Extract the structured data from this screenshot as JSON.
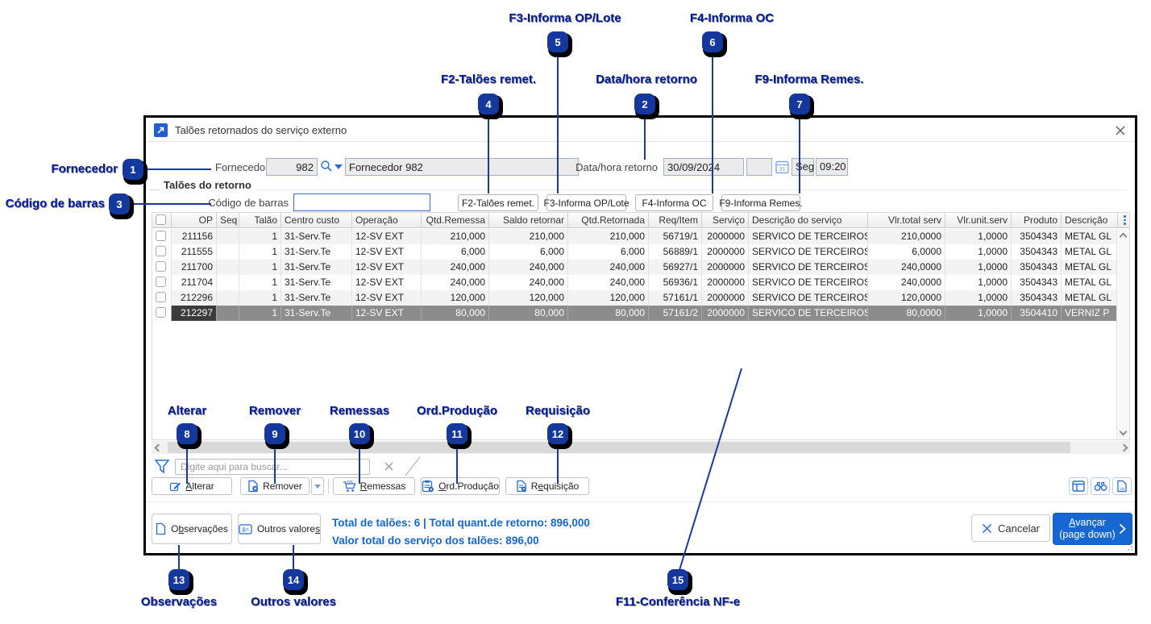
{
  "window": {
    "title": "Talões retornados do serviço externo"
  },
  "form": {
    "fornecedor_label": "Fornecedor",
    "fornecedor_code": "982",
    "fornecedor_name": "Fornecedor 982",
    "datahora_label": "Data/hora retorno",
    "date": "30/09/2024",
    "weekday": "Seg",
    "time": "09:20",
    "calendar_glyph": "31"
  },
  "group": {
    "title": "Talões do retorno",
    "barcode_label": "Código de barras",
    "barcode_value": "",
    "f2": "F2-Talões remet.",
    "f3": "F3-Informa OP/Lote",
    "f4": "F4-Informa OC",
    "f9": "F9-Informa Remes."
  },
  "table": {
    "columns": [
      "",
      "OP",
      "Seq",
      "Talão",
      "Centro custo",
      "Operação",
      "Qtd.Remessa",
      "Saldo retornar",
      "Qtd.Retornada",
      "Req/Item",
      "Serviço",
      "Descrição do serviço",
      "Vlr.total serv",
      "Vlr.unit.serv",
      "Produto",
      "Descrição"
    ],
    "selected_index": 5,
    "rows": [
      [
        "211156",
        "",
        "1",
        "31-Serv.Te",
        "12-SV EXT",
        "210,000",
        "210,000",
        "210,000",
        "56719/1",
        "2000000",
        "SERVICO DE TERCEIROS",
        "210,0000",
        "1,0000",
        "3504343",
        "METAL GL"
      ],
      [
        "211555",
        "",
        "1",
        "31-Serv.Te",
        "12-SV EXT",
        "6,000",
        "6,000",
        "6,000",
        "56889/1",
        "2000000",
        "SERVICO DE TERCEIROS",
        "6,0000",
        "1,0000",
        "3504343",
        "METAL GL"
      ],
      [
        "211700",
        "",
        "1",
        "31-Serv.Te",
        "12-SV EXT",
        "240,000",
        "240,000",
        "240,000",
        "56927/1",
        "2000000",
        "SERVICO DE TERCEIROS",
        "240,0000",
        "1,0000",
        "3504343",
        "METAL GL"
      ],
      [
        "211704",
        "",
        "1",
        "31-Serv.Te",
        "12-SV EXT",
        "240,000",
        "240,000",
        "240,000",
        "56936/1",
        "2000000",
        "SERVICO DE TERCEIROS",
        "240,0000",
        "1,0000",
        "3504343",
        "METAL GL"
      ],
      [
        "212296",
        "",
        "1",
        "31-Serv.Te",
        "12-SV EXT",
        "120,000",
        "120,000",
        "120,000",
        "57161/1",
        "2000000",
        "SERVICO DE TERCEIROS",
        "120,0000",
        "1,0000",
        "3504343",
        "METAL GL"
      ],
      [
        "212297",
        "",
        "1",
        "31-Serv.Te",
        "12-SV EXT",
        "80,000",
        "80,000",
        "80,000",
        "57161/2",
        "2000000",
        "SERVICO DE TERCEIROS",
        "80,0000",
        "1,0000",
        "3504410",
        "VERNIZ P"
      ]
    ]
  },
  "filter": {
    "placeholder": "Digite aqui para buscar..."
  },
  "actions": {
    "alterar": {
      "label": "Alterar",
      "mn": 0
    },
    "remover": {
      "label": "Remover",
      "mn": -1
    },
    "remessas": {
      "label": "Remessas",
      "mn": 0
    },
    "ord_producao": {
      "label": "Ord.Produção",
      "mn": 0
    },
    "requisicao": {
      "label": "Requisição",
      "mn": 1
    }
  },
  "footer": {
    "observacoes": {
      "label": "Observações",
      "mn": 1
    },
    "outros_valores": {
      "label": "Outros valores",
      "mn": 13
    },
    "total_line1": "Total de talões: 6 | Total quant.de retorno: 896,000",
    "total_line2": "Valor total do serviço dos talões: 896,00",
    "cancelar": "Cancelar",
    "avancar": {
      "label": "Avançar",
      "mn": 0
    },
    "avancar_sub": "(page down)"
  },
  "icons": {
    "xls_label": "xls",
    "money_label": "$="
  },
  "colors": {
    "accent": "#1f5fd0",
    "annotation": "#001a9b",
    "selected_row": "#8c8c8c",
    "totals": "#1565d0"
  },
  "callouts": [
    {
      "num": "1",
      "label": "Fornecedor"
    },
    {
      "num": "2",
      "label": "Data/hora retorno"
    },
    {
      "num": "3",
      "label": "Código de barras"
    },
    {
      "num": "4",
      "label": "F2-Talões remet."
    },
    {
      "num": "5",
      "label": "F3-Informa OP/Lote"
    },
    {
      "num": "6",
      "label": "F4-Informa OC"
    },
    {
      "num": "7",
      "label": "F9-Informa Remes."
    },
    {
      "num": "8",
      "label": "Alterar"
    },
    {
      "num": "9",
      "label": "Remover"
    },
    {
      "num": "10",
      "label": "Remessas"
    },
    {
      "num": "11",
      "label": "Ord.Produção"
    },
    {
      "num": "12",
      "label": "Requisição"
    },
    {
      "num": "13",
      "label": "Observações"
    },
    {
      "num": "14",
      "label": "Outros valores"
    },
    {
      "num": "15",
      "label": "F11-Conferência NF-e"
    }
  ]
}
